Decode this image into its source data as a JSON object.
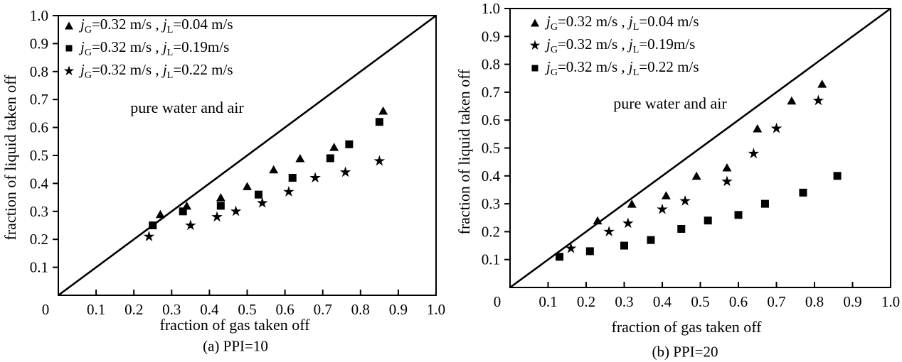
{
  "figure": {
    "background": "#ffffff",
    "ink": "#000000"
  },
  "chart_data": [
    {
      "id": "a",
      "type": "scatter",
      "caption": "(a) PPI=10",
      "xlabel": "fraction of gas taken off",
      "ylabel": "fraction of liquid taken off",
      "annotation": "pure water and air",
      "xlim": [
        0,
        1.0
      ],
      "ylim": [
        0,
        1.0
      ],
      "grid": "off",
      "legend_position": "top-left",
      "xtick_values": [
        0,
        0.1,
        0.2,
        0.3,
        0.4,
        0.5,
        0.6,
        0.7,
        0.8,
        0.9,
        1.0
      ],
      "xtick_labels": [
        "0",
        "0.1",
        "0.2",
        "0.3",
        "0.4",
        "0.5",
        "0.6",
        "0.7",
        "0.8",
        "0.9",
        "1.0"
      ],
      "ytick_values": [
        0.1,
        0.2,
        0.3,
        0.4,
        0.5,
        0.6,
        0.7,
        0.8,
        0.9,
        1.0
      ],
      "ytick_labels": [
        "0.1",
        "0.2",
        "0.3",
        "0.4",
        "0.5",
        "0.6",
        "0.7",
        "0.8",
        "0.9",
        "1.0"
      ],
      "reference_line": {
        "name": "y = x diagonal",
        "from": [
          0,
          0
        ],
        "to": [
          1,
          1
        ]
      },
      "legend": [
        {
          "marker": "triangle",
          "segments": [
            {
              "t": "j",
              "s": "i"
            },
            {
              "t": "G",
              "s": "sub"
            },
            {
              "t": "=0.32 m/s , ",
              "s": ""
            },
            {
              "t": "j",
              "s": "i"
            },
            {
              "t": "L",
              "s": "sub"
            },
            {
              "t": "=0.04 m/s",
              "s": ""
            }
          ]
        },
        {
          "marker": "square",
          "segments": [
            {
              "t": "j",
              "s": "i"
            },
            {
              "t": "G",
              "s": "sub"
            },
            {
              "t": "=0.32 m/s , ",
              "s": ""
            },
            {
              "t": "j",
              "s": "i"
            },
            {
              "t": "L",
              "s": "sub"
            },
            {
              "t": "=0.19m/s",
              "s": ""
            }
          ]
        },
        {
          "marker": "star",
          "segments": [
            {
              "t": "j",
              "s": "i"
            },
            {
              "t": "G",
              "s": "sub"
            },
            {
              "t": "=0.32 m/s , ",
              "s": ""
            },
            {
              "t": "j",
              "s": "i"
            },
            {
              "t": "L",
              "s": "sub"
            },
            {
              "t": "=0.22 m/s",
              "s": ""
            }
          ]
        }
      ],
      "series": [
        {
          "name": "jG=0.32 m/s, jL=0.04 m/s",
          "marker": "triangle",
          "points": [
            [
              0.27,
              0.29
            ],
            [
              0.34,
              0.32
            ],
            [
              0.43,
              0.35
            ],
            [
              0.5,
              0.39
            ],
            [
              0.57,
              0.45
            ],
            [
              0.64,
              0.49
            ],
            [
              0.73,
              0.53
            ],
            [
              0.86,
              0.66
            ]
          ]
        },
        {
          "name": "jG=0.32 m/s, jL=0.19 m/s",
          "marker": "square",
          "points": [
            [
              0.25,
              0.25
            ],
            [
              0.33,
              0.3
            ],
            [
              0.43,
              0.32
            ],
            [
              0.53,
              0.36
            ],
            [
              0.62,
              0.42
            ],
            [
              0.72,
              0.49
            ],
            [
              0.77,
              0.54
            ],
            [
              0.85,
              0.62
            ]
          ]
        },
        {
          "name": "jG=0.32 m/s, jL=0.22 m/s",
          "marker": "star",
          "points": [
            [
              0.24,
              0.21
            ],
            [
              0.35,
              0.25
            ],
            [
              0.42,
              0.28
            ],
            [
              0.47,
              0.3
            ],
            [
              0.54,
              0.33
            ],
            [
              0.61,
              0.37
            ],
            [
              0.68,
              0.42
            ],
            [
              0.76,
              0.44
            ],
            [
              0.85,
              0.48
            ]
          ]
        }
      ]
    },
    {
      "id": "b",
      "type": "scatter",
      "caption": "(b) PPI=20",
      "xlabel": "fraction of gas taken off",
      "ylabel": "fraction of liquid taken off",
      "annotation": "pure water and air",
      "xlim": [
        0,
        1.0
      ],
      "ylim": [
        0,
        1.0
      ],
      "grid": "off",
      "legend_position": "top-left",
      "xtick_values": [
        0,
        0.1,
        0.2,
        0.3,
        0.4,
        0.5,
        0.6,
        0.7,
        0.8,
        0.9,
        1.0
      ],
      "xtick_labels": [
        "0",
        "0.1",
        "0.2",
        "0.3",
        "0.4",
        "0.5",
        "0.6",
        "0.7",
        "0.8",
        "0.9",
        "1.0"
      ],
      "ytick_values": [
        0.1,
        0.2,
        0.3,
        0.4,
        0.5,
        0.6,
        0.7,
        0.8,
        0.9,
        1.0
      ],
      "ytick_labels": [
        "0.1",
        "0.2",
        "0.3",
        "0.4",
        "0.5",
        "0.6",
        "0.7",
        "0.8",
        "0.9",
        "1.0"
      ],
      "reference_line": {
        "name": "y = x diagonal",
        "from": [
          0,
          0
        ],
        "to": [
          1,
          1
        ]
      },
      "legend": [
        {
          "marker": "triangle",
          "segments": [
            {
              "t": "j",
              "s": "i"
            },
            {
              "t": "G",
              "s": "sub"
            },
            {
              "t": "=0.32 m/s , ",
              "s": ""
            },
            {
              "t": "j",
              "s": "i"
            },
            {
              "t": "L",
              "s": "sub"
            },
            {
              "t": "=0.04 m/s",
              "s": ""
            }
          ]
        },
        {
          "marker": "star",
          "segments": [
            {
              "t": "j",
              "s": "i"
            },
            {
              "t": "G",
              "s": "sub"
            },
            {
              "t": "=0.32 m/s , ",
              "s": ""
            },
            {
              "t": "j",
              "s": "i"
            },
            {
              "t": "L",
              "s": "sub"
            },
            {
              "t": "=0.19m/s",
              "s": ""
            }
          ]
        },
        {
          "marker": "square",
          "segments": [
            {
              "t": "j",
              "s": "i"
            },
            {
              "t": "G",
              "s": "sub"
            },
            {
              "t": "=0.32 m/s , ",
              "s": ""
            },
            {
              "t": "j",
              "s": "i"
            },
            {
              "t": "L",
              "s": "sub"
            },
            {
              "t": "=0.22 m/s",
              "s": ""
            }
          ]
        }
      ],
      "series": [
        {
          "name": "jG=0.32 m/s, jL=0.04 m/s",
          "marker": "triangle",
          "points": [
            [
              0.23,
              0.24
            ],
            [
              0.32,
              0.3
            ],
            [
              0.41,
              0.33
            ],
            [
              0.49,
              0.4
            ],
            [
              0.57,
              0.43
            ],
            [
              0.65,
              0.57
            ],
            [
              0.74,
              0.67
            ],
            [
              0.82,
              0.73
            ]
          ]
        },
        {
          "name": "jG=0.32 m/s, jL=0.19 m/s",
          "marker": "star",
          "points": [
            [
              0.16,
              0.14
            ],
            [
              0.26,
              0.2
            ],
            [
              0.31,
              0.23
            ],
            [
              0.4,
              0.28
            ],
            [
              0.46,
              0.31
            ],
            [
              0.57,
              0.38
            ],
            [
              0.64,
              0.48
            ],
            [
              0.7,
              0.57
            ],
            [
              0.81,
              0.67
            ]
          ]
        },
        {
          "name": "jG=0.32 m/s, jL=0.22 m/s",
          "marker": "square",
          "points": [
            [
              0.13,
              0.11
            ],
            [
              0.21,
              0.13
            ],
            [
              0.3,
              0.15
            ],
            [
              0.37,
              0.17
            ],
            [
              0.45,
              0.21
            ],
            [
              0.52,
              0.24
            ],
            [
              0.6,
              0.26
            ],
            [
              0.67,
              0.3
            ],
            [
              0.77,
              0.34
            ],
            [
              0.86,
              0.4
            ]
          ]
        }
      ]
    }
  ]
}
